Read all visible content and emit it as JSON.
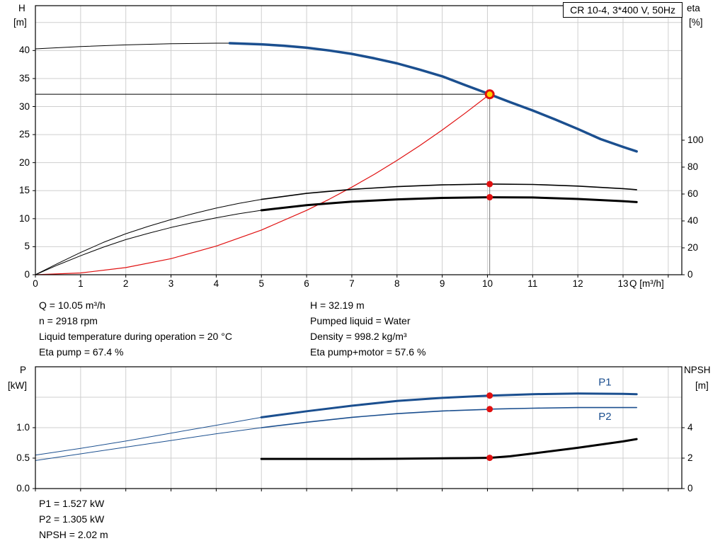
{
  "colors": {
    "curve_blue": "#1b4f8f",
    "marker_red": "#e01010",
    "duty_yellow": "#ffd200",
    "grid_gray": "#cfcfcf"
  },
  "top_info": {
    "left": [
      "Q = 10.05 m³/h",
      "n = 2918 rpm",
      "Liquid temperature during operation = 20 °C",
      "Eta pump = 67.4 %"
    ],
    "right": [
      "H = 32.19 m",
      "Pumped liquid = Water",
      "Density = 998.2 kg/m³",
      "Eta pump+motor = 57.6 %"
    ]
  },
  "bottom_info": {
    "lines": [
      "P1 = 1.527 kW",
      "P2 = 1.305 kW",
      "NPSH = 2.02 m"
    ]
  },
  "chart_data": [
    {
      "type": "line",
      "title": "CR 10-4, 3*400 V, 50Hz",
      "x": {
        "label": "Q [m³/h]",
        "min": 0,
        "max": 14.3,
        "ticks": [
          [
            0,
            "0"
          ],
          [
            1,
            "1"
          ],
          [
            2,
            "2"
          ],
          [
            3,
            "3"
          ],
          [
            4,
            "4"
          ],
          [
            5,
            "5"
          ],
          [
            6,
            "6"
          ],
          [
            7,
            "7"
          ],
          [
            8,
            "8"
          ],
          [
            9,
            "9"
          ],
          [
            10,
            "10"
          ],
          [
            11,
            "11"
          ],
          [
            12,
            "12"
          ],
          [
            13,
            "13"
          ]
        ],
        "grid": [
          1,
          2,
          3,
          4,
          5,
          6,
          7,
          8,
          9,
          10,
          11,
          12,
          13,
          14
        ]
      },
      "y_left": {
        "label": "H",
        "unit": "[m]",
        "min": 0,
        "max": 48,
        "ticks": [
          [
            0,
            "0"
          ],
          [
            5,
            "5"
          ],
          [
            10,
            "10"
          ],
          [
            15,
            "15"
          ],
          [
            20,
            "20"
          ],
          [
            25,
            "25"
          ],
          [
            30,
            "30"
          ],
          [
            35,
            "35"
          ],
          [
            40,
            "40"
          ]
        ],
        "grid": [
          5,
          10,
          15,
          20,
          25,
          30,
          35,
          40,
          45
        ]
      },
      "y_right": {
        "label": "eta",
        "unit": "[%]",
        "min": 0,
        "max": 200,
        "ticks": [
          [
            0,
            "0"
          ],
          [
            20,
            "20"
          ],
          [
            40,
            "40"
          ],
          [
            60,
            "60"
          ],
          [
            80,
            "80"
          ],
          [
            100,
            "100"
          ]
        ]
      },
      "duty_lines": {
        "h": 32.19,
        "v": 10.05
      },
      "series": [
        {
          "name": "head-curve-extension",
          "axis": "left",
          "color": "#000000",
          "width": 1,
          "points": [
            [
              0,
              40.3
            ],
            [
              1,
              40.7
            ],
            [
              2,
              41.0
            ],
            [
              3,
              41.2
            ],
            [
              4,
              41.3
            ],
            [
              4.3,
              41.3
            ]
          ]
        },
        {
          "name": "head-curve",
          "axis": "left",
          "color": "#1b4f8f",
          "width": 3.5,
          "points": [
            [
              4.3,
              41.3
            ],
            [
              5,
              41.1
            ],
            [
              5.5,
              40.85
            ],
            [
              6,
              40.5
            ],
            [
              6.5,
              40.0
            ],
            [
              7,
              39.4
            ],
            [
              7.5,
              38.6
            ],
            [
              8,
              37.7
            ],
            [
              8.5,
              36.6
            ],
            [
              9,
              35.4
            ],
            [
              9.5,
              33.85
            ],
            [
              10,
              32.35
            ],
            [
              10.05,
              32.19
            ],
            [
              10.5,
              30.8
            ],
            [
              11,
              29.3
            ],
            [
              11.5,
              27.7
            ],
            [
              12,
              26.0
            ],
            [
              12.5,
              24.2
            ],
            [
              13,
              22.8
            ],
            [
              13.3,
              22.0
            ]
          ]
        },
        {
          "name": "system-curve",
          "axis": "left",
          "color": "#e01010",
          "width": 1.2,
          "points": [
            [
              0,
              0
            ],
            [
              1,
              0.32
            ],
            [
              2,
              1.27
            ],
            [
              3,
              2.87
            ],
            [
              4,
              5.1
            ],
            [
              5,
              7.97
            ],
            [
              6,
              11.48
            ],
            [
              6.5,
              13.47
            ],
            [
              7,
              15.62
            ],
            [
              7.5,
              17.93
            ],
            [
              8,
              20.4
            ],
            [
              8.5,
              23.03
            ],
            [
              9,
              25.82
            ],
            [
              9.5,
              28.77
            ],
            [
              10,
              31.88
            ],
            [
              10.05,
              32.19
            ]
          ]
        },
        {
          "name": "eta-pump-extension",
          "axis": "right",
          "color": "#000000",
          "width": 1,
          "points": [
            [
              0,
              0
            ],
            [
              0.5,
              8.5
            ],
            [
              1,
              16.5
            ],
            [
              1.5,
              24
            ],
            [
              2,
              30.5
            ],
            [
              2.5,
              36
            ],
            [
              3,
              41
            ],
            [
              3.5,
              45.5
            ],
            [
              4,
              49.5
            ],
            [
              4.5,
              53
            ],
            [
              5,
              56
            ]
          ]
        },
        {
          "name": "eta-pump-curve",
          "axis": "right",
          "color": "#000000",
          "width": 1.6,
          "points": [
            [
              5,
              56
            ],
            [
              6,
              60.5
            ],
            [
              7,
              63.5
            ],
            [
              8,
              65.5
            ],
            [
              9,
              66.8
            ],
            [
              10,
              67.4
            ],
            [
              10.05,
              67.4
            ],
            [
              11,
              67.1
            ],
            [
              12,
              65.9
            ],
            [
              13,
              64.0
            ],
            [
              13.3,
              63.2
            ]
          ]
        },
        {
          "name": "eta-pump-motor-extension",
          "axis": "right",
          "color": "#000000",
          "width": 1,
          "points": [
            [
              0,
              0
            ],
            [
              0.5,
              7.3
            ],
            [
              1,
              14.1
            ],
            [
              1.5,
              20.5
            ],
            [
              2,
              26.1
            ],
            [
              2.5,
              30.8
            ],
            [
              3,
              35.1
            ],
            [
              3.5,
              38.9
            ],
            [
              4,
              42.3
            ],
            [
              4.5,
              45.3
            ],
            [
              5,
              47.9
            ]
          ]
        },
        {
          "name": "eta-pump-motor-curve",
          "axis": "right",
          "color": "#000000",
          "width": 3,
          "points": [
            [
              5,
              47.9
            ],
            [
              6,
              51.7
            ],
            [
              7,
              54.3
            ],
            [
              8,
              56.0
            ],
            [
              9,
              57.1
            ],
            [
              10,
              57.6
            ],
            [
              10.05,
              57.6
            ],
            [
              11,
              57.4
            ],
            [
              12,
              56.3
            ],
            [
              13,
              54.7
            ],
            [
              13.3,
              54.0
            ]
          ]
        }
      ],
      "markers": [
        {
          "x": 10.05,
          "y": 32.19,
          "axis": "left",
          "style": "duty"
        },
        {
          "x": 10.05,
          "y": 67.4,
          "axis": "right",
          "style": "dot"
        },
        {
          "x": 10.05,
          "y": 57.6,
          "axis": "right",
          "style": "dot"
        }
      ]
    },
    {
      "type": "line",
      "x": {
        "label": "",
        "min": 0,
        "max": 14.3,
        "ticks": [],
        "grid": [
          1,
          2,
          3,
          4,
          5,
          6,
          7,
          8,
          9,
          10,
          11,
          12,
          13,
          14
        ]
      },
      "y_left": {
        "label": "P",
        "unit": "[kW]",
        "min": 0,
        "max": 2,
        "ticks": [
          [
            0,
            "0.0"
          ],
          [
            0.5,
            "0.5"
          ],
          [
            1,
            "1.0"
          ]
        ],
        "grid": [
          0.5,
          1,
          1.5
        ]
      },
      "y_right": {
        "label": "NPSH",
        "unit": "[m]",
        "min": 0,
        "max": 8,
        "ticks": [
          [
            0,
            "0"
          ],
          [
            2,
            "2"
          ],
          [
            4,
            "4"
          ]
        ]
      },
      "series": [
        {
          "name": "p1-extension",
          "axis": "left",
          "color": "#1b4f8f",
          "width": 1,
          "points": [
            [
              0,
              0.55
            ],
            [
              1,
              0.66
            ],
            [
              2,
              0.78
            ],
            [
              3,
              0.91
            ],
            [
              4,
              1.04
            ],
            [
              5,
              1.17
            ]
          ]
        },
        {
          "name": "p1-curve",
          "axis": "left",
          "color": "#1b4f8f",
          "width": 3,
          "points": [
            [
              5,
              1.17
            ],
            [
              6,
              1.27
            ],
            [
              7,
              1.36
            ],
            [
              8,
              1.44
            ],
            [
              9,
              1.49
            ],
            [
              10,
              1.525
            ],
            [
              10.05,
              1.527
            ],
            [
              11,
              1.55
            ],
            [
              12,
              1.56
            ],
            [
              13,
              1.555
            ],
            [
              13.3,
              1.55
            ]
          ]
        },
        {
          "name": "p2-extension",
          "axis": "left",
          "color": "#1b4f8f",
          "width": 1,
          "points": [
            [
              0,
              0.46
            ],
            [
              1,
              0.57
            ],
            [
              2,
              0.68
            ],
            [
              3,
              0.79
            ],
            [
              4,
              0.9
            ],
            [
              5,
              1.0
            ]
          ]
        },
        {
          "name": "p2-curve",
          "axis": "left",
          "color": "#1b4f8f",
          "width": 1.6,
          "points": [
            [
              5,
              1.0
            ],
            [
              6,
              1.09
            ],
            [
              7,
              1.17
            ],
            [
              8,
              1.23
            ],
            [
              9,
              1.275
            ],
            [
              10,
              1.3
            ],
            [
              10.05,
              1.305
            ],
            [
              11,
              1.32
            ],
            [
              12,
              1.33
            ],
            [
              13,
              1.33
            ],
            [
              13.3,
              1.33
            ]
          ]
        },
        {
          "name": "npsh-curve",
          "axis": "right",
          "color": "#000000",
          "width": 3,
          "points": [
            [
              5,
              1.95
            ],
            [
              6,
              1.95
            ],
            [
              7,
              1.95
            ],
            [
              8,
              1.96
            ],
            [
              9,
              1.99
            ],
            [
              9.5,
              2.0
            ],
            [
              10,
              2.02
            ],
            [
              10.05,
              2.02
            ],
            [
              10.5,
              2.12
            ],
            [
              11,
              2.3
            ],
            [
              12,
              2.68
            ],
            [
              13,
              3.1
            ],
            [
              13.3,
              3.25
            ]
          ]
        }
      ],
      "markers": [
        {
          "x": 10.05,
          "y": 1.527,
          "axis": "left",
          "style": "dot"
        },
        {
          "x": 10.05,
          "y": 1.305,
          "axis": "left",
          "style": "dot"
        },
        {
          "x": 10.05,
          "y": 2.02,
          "axis": "right",
          "style": "dot"
        }
      ],
      "curve_labels": [
        {
          "text": "P1",
          "x": 12.6,
          "y": 1.69,
          "axis": "left",
          "color": "#1b4f8f"
        },
        {
          "text": "P2",
          "x": 12.6,
          "y": 1.13,
          "axis": "left",
          "color": "#1b4f8f"
        }
      ]
    }
  ]
}
